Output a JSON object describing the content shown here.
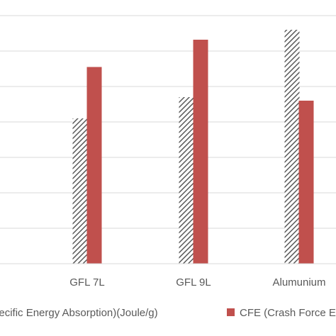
{
  "chart_data": {
    "type": "bar",
    "categories": [
      "GFL 7L",
      "GFL 9L",
      "Alumunium"
    ],
    "series": [
      {
        "name": "Specific Energy Absorption)(Joule/g)",
        "values": [
          4.1,
          4.7,
          6.6
        ],
        "pattern": "diagonal-hatch",
        "color": "#5a5a5a"
      },
      {
        "name": "CFE (Crash Force Efficiency)",
        "values": [
          5.55,
          6.32,
          4.6
        ],
        "color": "#c0504d"
      }
    ],
    "ylim": [
      0,
      7
    ],
    "grid": true,
    "legend": "bottom",
    "title": "",
    "xlabel": "",
    "ylabel": ""
  }
}
